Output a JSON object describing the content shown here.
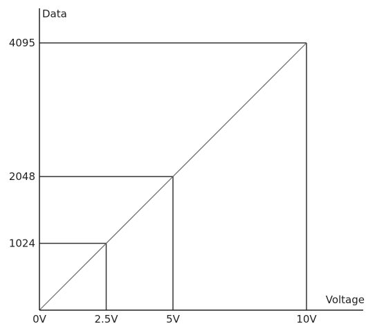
{
  "chart_data": {
    "type": "line",
    "title": "",
    "xlabel": "Voltage",
    "ylabel": "Data",
    "xlim": [
      0,
      10
    ],
    "ylim": [
      0,
      4095
    ],
    "x_ticks": [
      {
        "value": 0,
        "label": "0V"
      },
      {
        "value": 2.5,
        "label": "2.5V"
      },
      {
        "value": 5,
        "label": "5V"
      },
      {
        "value": 10,
        "label": "10V"
      }
    ],
    "y_ticks": [
      {
        "value": 1024,
        "label": "1024"
      },
      {
        "value": 2048,
        "label": "2048"
      },
      {
        "value": 4095,
        "label": "4095"
      }
    ],
    "series": [
      {
        "x": [
          0,
          10
        ],
        "y": [
          0,
          4095
        ]
      }
    ],
    "reference_points": [
      {
        "x": 2.5,
        "y": 1024
      },
      {
        "x": 5,
        "y": 2048
      },
      {
        "x": 10,
        "y": 4095
      }
    ],
    "grid": false,
    "colors": {
      "axis": "#222222",
      "line": "#666666",
      "guide": "#333333"
    }
  }
}
